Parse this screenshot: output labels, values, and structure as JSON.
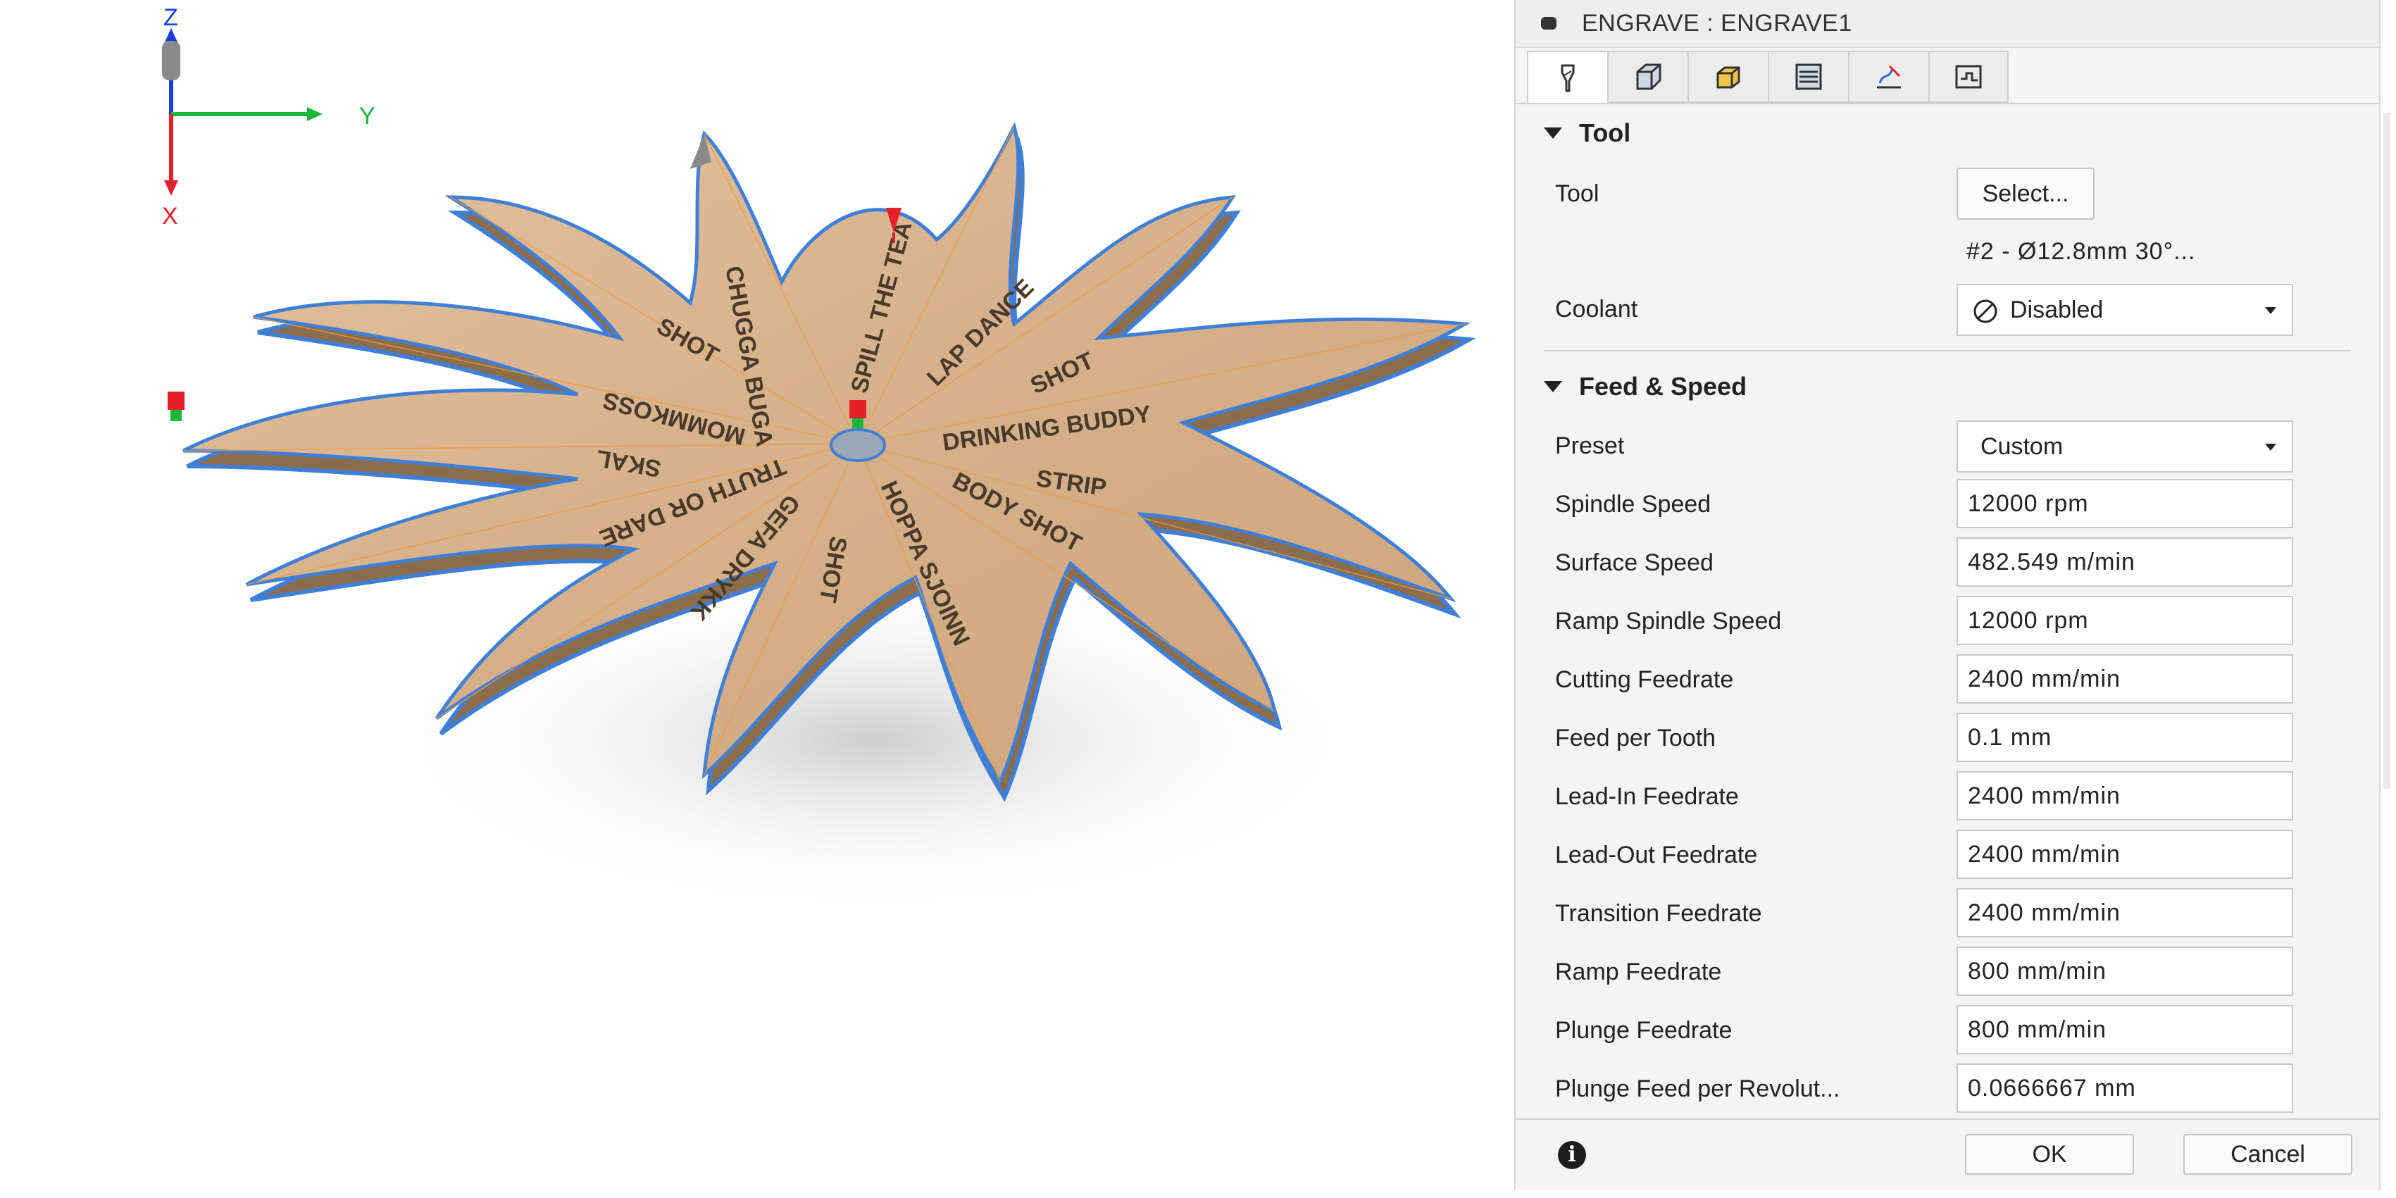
{
  "axes": {
    "z": "Z",
    "y": "Y",
    "x": "X"
  },
  "model": {
    "labels": [
      "SHOT",
      "CHUGGA BUGA",
      "SPILL THE TEA",
      "LAP DANCE",
      "SHOT",
      "MOMMKOSS",
      "DRINKING BUDDY",
      "SKAL",
      "STRIP",
      "TRUTH OR DARE",
      "BODY SHOT",
      "GEFA DRYKK",
      "SHOT",
      "HOPPA SJOINN"
    ],
    "wood_color": "#d8b692",
    "outline_color": "#3f7fd8"
  },
  "dialog": {
    "title": "ENGRAVE : ENGRAVE1",
    "tabs": [
      "tool-tab",
      "geometry-tab",
      "heights-tab",
      "passes-tab",
      "linking-tab",
      "post-tab"
    ],
    "tool_section": {
      "header": "Tool",
      "tool_label": "Tool",
      "select_button": "Select...",
      "tool_description": "#2 - Ø12.8mm 30°...",
      "coolant_label": "Coolant",
      "coolant_value": "Disabled"
    },
    "feed_section": {
      "header": "Feed & Speed",
      "preset_label": "Preset",
      "preset_value": "Custom",
      "rows": [
        {
          "label": "Spindle Speed",
          "value": "12000 rpm"
        },
        {
          "label": "Surface Speed",
          "value": "482.549 m/min"
        },
        {
          "label": "Ramp Spindle Speed",
          "value": "12000 rpm"
        },
        {
          "label": "Cutting Feedrate",
          "value": "2400 mm/min"
        },
        {
          "label": "Feed per Tooth",
          "value": "0.1 mm"
        },
        {
          "label": "Lead-In Feedrate",
          "value": "2400 mm/min"
        },
        {
          "label": "Lead-Out Feedrate",
          "value": "2400 mm/min"
        },
        {
          "label": "Transition Feedrate",
          "value": "2400 mm/min"
        },
        {
          "label": "Ramp Feedrate",
          "value": "800 mm/min"
        },
        {
          "label": "Plunge Feedrate",
          "value": "800 mm/min"
        },
        {
          "label": "Plunge Feed per Revolut...",
          "value": "0.0666667 mm"
        }
      ]
    },
    "footer": {
      "ok": "OK",
      "cancel": "Cancel",
      "info": "i"
    }
  }
}
